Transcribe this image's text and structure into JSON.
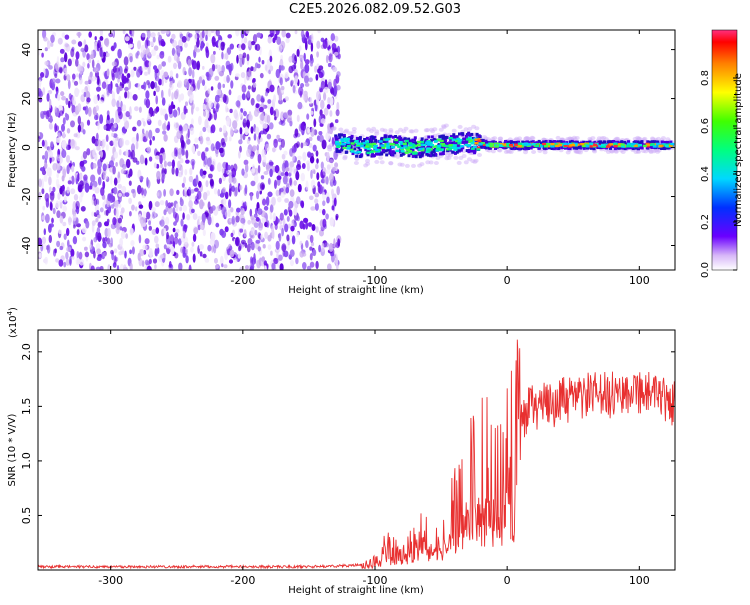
{
  "title": "C2E5.2026.082.09.52.G03",
  "chart_data": [
    {
      "type": "heatmap",
      "xlabel": "Height of straight line (km)",
      "ylabel": "Frequency (Hz)",
      "xlim": [
        -355,
        127
      ],
      "ylim": [
        -50,
        48
      ],
      "x_ticks": [
        -300,
        -200,
        -100,
        0,
        100
      ],
      "y_ticks": [
        -40,
        -20,
        0,
        20,
        40
      ],
      "grid": false,
      "signal_trace": {
        "x": [
          -130,
          -110,
          -90,
          -70,
          -50,
          -30,
          -10,
          10,
          30,
          50,
          70,
          90,
          110,
          125
        ],
        "frequency_hz": [
          2,
          0,
          1,
          0,
          1,
          2,
          1,
          1,
          1,
          1,
          1,
          1,
          1,
          1
        ]
      },
      "colorbar": {
        "label": "Normalized spectral amplitude",
        "range": [
          0.0,
          1.0
        ],
        "ticks": [
          0.0,
          0.2,
          0.4,
          0.6,
          0.8
        ],
        "tick_labels": [
          "0.0",
          "0.2",
          "0.4",
          "0.6",
          "0.8"
        ]
      }
    },
    {
      "type": "line",
      "xlabel": "Height of straight line (km)",
      "ylabel": "SNR (10 * V/V)",
      "y_multiplier_label": "(x10",
      "y_multiplier_exp": "4",
      "y_multiplier_close": ")",
      "xlim": [
        -355,
        127
      ],
      "ylim": [
        0,
        2.2
      ],
      "x_ticks": [
        -300,
        -200,
        -100,
        0,
        100
      ],
      "y_ticks": [
        0.5,
        1.0,
        1.5,
        2.0
      ],
      "y_tick_labels": [
        "0.5",
        "1.0",
        "1.5",
        "2.0"
      ],
      "color": "#e83030",
      "series": [
        {
          "x": [
            -355,
            -300,
            -250,
            -200,
            -150,
            -120,
            -105,
            -100,
            -95,
            -90,
            -85,
            -80,
            -75,
            -70,
            -65,
            -60,
            -55,
            -50,
            -45,
            -40,
            -35,
            -30,
            -25,
            -20,
            -15,
            -10,
            -5,
            0,
            5,
            10,
            15,
            20,
            25,
            30,
            40,
            50,
            60,
            70,
            80,
            90,
            100,
            110,
            115,
            120,
            127
          ],
          "y": [
            0.03,
            0.03,
            0.03,
            0.03,
            0.03,
            0.04,
            0.05,
            0.08,
            0.15,
            0.22,
            0.2,
            0.15,
            0.2,
            0.3,
            0.35,
            0.3,
            0.38,
            0.4,
            0.45,
            0.55,
            0.75,
            0.8,
            0.85,
            0.9,
            0.95,
            1.0,
            1.05,
            1.1,
            1.25,
            1.35,
            1.45,
            1.5,
            1.5,
            1.5,
            1.55,
            1.55,
            1.6,
            1.6,
            1.6,
            1.65,
            1.65,
            1.6,
            1.55,
            1.55,
            1.53
          ]
        }
      ]
    }
  ]
}
